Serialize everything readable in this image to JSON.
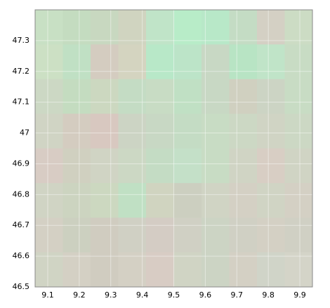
{
  "chart_data": {
    "type": "heatmap",
    "xlim": [
      9.06,
      9.94
    ],
    "ylim": [
      46.5,
      47.4
    ],
    "xticks": [
      9.1,
      9.2,
      9.3,
      9.4,
      9.5,
      9.6,
      9.7,
      9.8,
      9.9
    ],
    "yticks": [
      46.5,
      46.6,
      46.7,
      46.8,
      46.9,
      47,
      47.1,
      47.2,
      47.3
    ],
    "grid": true,
    "cells": [
      [
        "#c8e0c4",
        "#c4dcc0",
        "#c8d8c0",
        "#d0d4c0",
        "#c0e4c8",
        "#b8ecc8",
        "#b8e8c8",
        "#c4dcc4",
        "#d4d0c4",
        "#ccdcc4"
      ],
      [
        "#cce0c4",
        "#c0e0c4",
        "#d4ccc0",
        "#d4d4c0",
        "#b8e8c8",
        "#bce4c8",
        "#c8d8c4",
        "#b8e4c4",
        "#c0e4c8",
        "#c8dcc4"
      ],
      [
        "#ccd8c4",
        "#c4dcc0",
        "#ccd8c0",
        "#c4dcc4",
        "#c8dcc4",
        "#c0e0c4",
        "#c8d8c4",
        "#d0d0c0",
        "#ccd4c4",
        "#c8dcc4"
      ],
      [
        "#d0d4c4",
        "#d4ccc0",
        "#d8c8c0",
        "#ccd4c4",
        "#c8d8c4",
        "#c4dcc4",
        "#c8dcc4",
        "#ccd8c4",
        "#d0d4c4",
        "#ccd8c4"
      ],
      [
        "#d8ccc4",
        "#d0d0c0",
        "#d0d4c4",
        "#ccd8c4",
        "#c4dcc4",
        "#c4e0c8",
        "#c8dcc4",
        "#d0d4c4",
        "#d8cec4",
        "#d0d4c4"
      ],
      [
        "#d0d4c4",
        "#ccd4c0",
        "#ccd8c0",
        "#c0e0c4",
        "#d0d4c0",
        "#cccfc0",
        "#d0d4c4",
        "#d4d0c4",
        "#d0d4c4",
        "#d4d0c4"
      ],
      [
        "#d4d0c4",
        "#ccd0c0",
        "#d0ccc0",
        "#d0d0c4",
        "#d4ccc4",
        "#d0d0c4",
        "#ccd4c4",
        "#d0d0c4",
        "#d4d0c4",
        "#d0d0c4"
      ],
      [
        "#d0d4c4",
        "#d4d0c4",
        "#d0ccc0",
        "#d4d0c4",
        "#d8ccc4",
        "#d0d4c4",
        "#ccd4c4",
        "#d4d0c4",
        "#d0d4c8",
        "#d4d4c8"
      ]
    ]
  }
}
